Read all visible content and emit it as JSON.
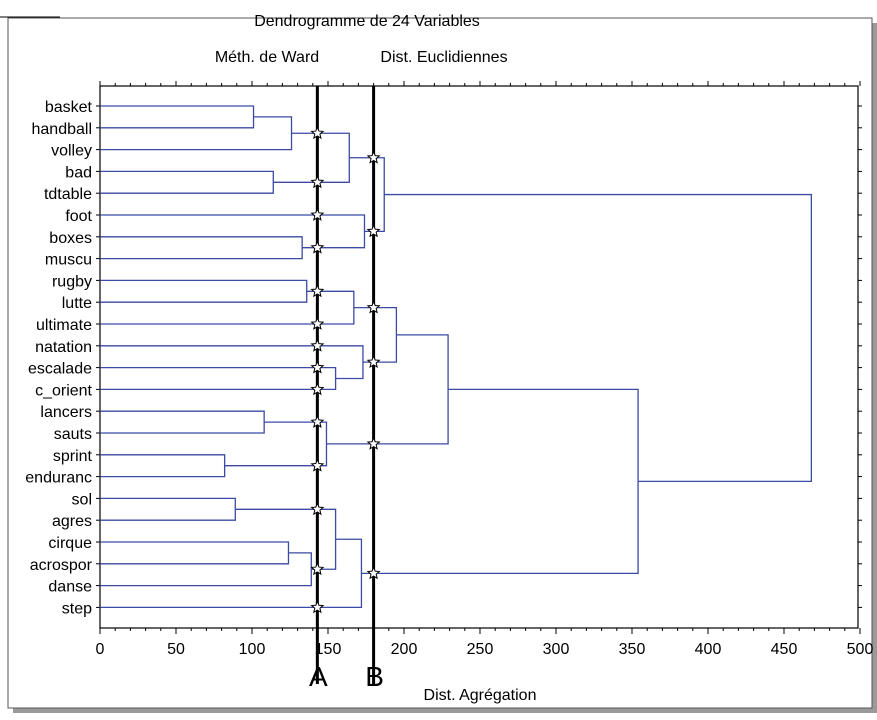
{
  "chart_data": {
    "type": "dendrogram",
    "title": "Dendrogramme de 24  Variables",
    "subtitle_left": "Méth. de Ward",
    "subtitle_right": "Dist. Euclidiennes",
    "xlabel": "Dist. Agrégation",
    "xlim": [
      0,
      500
    ],
    "xticks": [
      0,
      50,
      100,
      150,
      200,
      250,
      300,
      350,
      400,
      450,
      500
    ],
    "leaves": [
      "basket",
      "handball",
      "volley",
      "bad",
      "tdtable",
      "foot",
      "boxes",
      "muscu",
      "rugby",
      "lutte",
      "ultimate",
      "natation",
      "escalade",
      "c_orient",
      "lancers",
      "sauts",
      "sprint",
      "enduranc",
      "sol",
      "agres",
      "cirque",
      "acrospor",
      "danse",
      "step"
    ],
    "merges": [
      {
        "id": "m1",
        "left": "basket",
        "right": "handball",
        "height": 101
      },
      {
        "id": "m2",
        "left": "m1",
        "right": "volley",
        "height": 126
      },
      {
        "id": "m3",
        "left": "bad",
        "right": "tdtable",
        "height": 114
      },
      {
        "id": "m4",
        "left": "m2",
        "right": "m3",
        "height": 164
      },
      {
        "id": "m5",
        "left": "boxes",
        "right": "muscu",
        "height": 133
      },
      {
        "id": "m6",
        "left": "foot",
        "right": "m5",
        "height": 174
      },
      {
        "id": "m7",
        "left": "m4",
        "right": "m6",
        "height": 187
      },
      {
        "id": "m8",
        "left": "rugby",
        "right": "lutte",
        "height": 136
      },
      {
        "id": "m9",
        "left": "m8",
        "right": "ultimate",
        "height": 167
      },
      {
        "id": "m10",
        "left": "escalade",
        "right": "c_orient",
        "height": 155
      },
      {
        "id": "m11",
        "left": "natation",
        "right": "m10",
        "height": 173
      },
      {
        "id": "m12",
        "left": "m9",
        "right": "m11",
        "height": 195
      },
      {
        "id": "m13",
        "left": "lancers",
        "right": "sauts",
        "height": 108
      },
      {
        "id": "m14",
        "left": "sprint",
        "right": "enduranc",
        "height": 82
      },
      {
        "id": "m15",
        "left": "m13",
        "right": "m14",
        "height": 149
      },
      {
        "id": "m16",
        "left": "m12",
        "right": "m15",
        "height": 229
      },
      {
        "id": "m17",
        "left": "sol",
        "right": "agres",
        "height": 89
      },
      {
        "id": "m18",
        "left": "cirque",
        "right": "acrospor",
        "height": 124
      },
      {
        "id": "m19",
        "left": "m18",
        "right": "danse",
        "height": 139
      },
      {
        "id": "m20",
        "left": "m17",
        "right": "m19",
        "height": 155
      },
      {
        "id": "m21",
        "left": "m20",
        "right": "step",
        "height": 172
      },
      {
        "id": "m22",
        "left": "m16",
        "right": "m21",
        "height": 354
      },
      {
        "id": "m23",
        "left": "m7",
        "right": "m22",
        "height": 468
      }
    ],
    "cut_lines": [
      {
        "label": "A",
        "x": 143
      },
      {
        "label": "B",
        "x": 180
      }
    ],
    "grid": false,
    "colors": {
      "tree": "#3b4aa3",
      "cut_line": "#000000",
      "axis": "#000000"
    }
  }
}
